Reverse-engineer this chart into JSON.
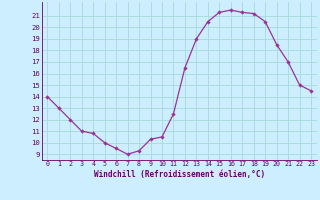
{
  "x": [
    0,
    1,
    2,
    3,
    4,
    5,
    6,
    7,
    8,
    9,
    10,
    11,
    12,
    13,
    14,
    15,
    16,
    17,
    18,
    19,
    20,
    21,
    22,
    23
  ],
  "y": [
    14,
    13,
    12,
    11,
    10.8,
    10,
    9.5,
    9,
    9.3,
    10.3,
    10.5,
    12.5,
    16.5,
    19,
    20.5,
    21.3,
    21.5,
    21.3,
    21.2,
    20.5,
    18.5,
    17,
    15,
    14.5
  ],
  "xlabel": "Windchill (Refroidissement éolien,°C)",
  "xlim": [
    -0.5,
    23.5
  ],
  "ylim": [
    8.5,
    22.2
  ],
  "yticks": [
    9,
    10,
    11,
    12,
    13,
    14,
    15,
    16,
    17,
    18,
    19,
    20,
    21
  ],
  "xticks": [
    0,
    1,
    2,
    3,
    4,
    5,
    6,
    7,
    8,
    9,
    10,
    11,
    12,
    13,
    14,
    15,
    16,
    17,
    18,
    19,
    20,
    21,
    22,
    23
  ],
  "line_color": "#993399",
  "marker": "D",
  "marker_size": 2.2,
  "bg_color": "#cceeff",
  "grid_color": "#aadddd",
  "text_color": "#660066",
  "linewidth": 0.9
}
